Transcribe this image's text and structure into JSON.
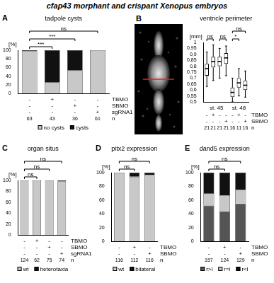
{
  "title": "cfap43 morphant and crispant Xenopus embryos",
  "chart_data": [
    {
      "panel": "A",
      "type": "bar",
      "stacked": true,
      "title": "tadpole cysts",
      "ylabel": "[%]",
      "categories": [
        null,
        null,
        null,
        null
      ],
      "series": [
        {
          "name": "no cysts",
          "color": "#c8c8c8",
          "values": [
            98,
            25,
            53,
            100
          ]
        },
        {
          "name": "cysts",
          "color": "#111111",
          "values": [
            2,
            75,
            47,
            0
          ]
        }
      ],
      "ylim": [
        0,
        100
      ],
      "yticks": [
        0,
        20,
        40,
        60,
        80,
        100
      ],
      "significance": [
        null,
        "***",
        "***",
        "ns"
      ],
      "conditions": [
        {
          "name": "TBMO",
          "values": [
            "-",
            "+",
            "-",
            "-"
          ]
        },
        {
          "name": "SBMO",
          "values": [
            "-",
            "-",
            "+",
            "-"
          ]
        },
        {
          "name": "sgRNA1",
          "values": [
            "-",
            "-",
            "-",
            "+"
          ]
        }
      ],
      "n": [
        63,
        43,
        36,
        61
      ],
      "legend": "bottom"
    },
    {
      "panel": "B",
      "type": "boxplot",
      "title": "ventricle perimeter",
      "ylabel": "[mm]",
      "categories": [
        null,
        null,
        null,
        null,
        null,
        null,
        null
      ],
      "boxes": [
        {
          "stage": "st. 45",
          "min": 0.63,
          "q1": 0.72,
          "median": 0.78,
          "q3": 0.82,
          "max": 0.92
        },
        {
          "stage": "st. 45",
          "min": 0.68,
          "q1": 0.79,
          "median": 0.84,
          "q3": 0.88,
          "max": 0.98
        },
        {
          "stage": "st. 45",
          "min": 0.7,
          "q1": 0.8,
          "median": 0.84,
          "q3": 0.88,
          "max": 0.95
        },
        {
          "stage": "st. 45",
          "min": 0.72,
          "q1": 0.82,
          "median": 0.87,
          "q3": 0.91,
          "max": 0.97
        },
        {
          "stage": "st. 48",
          "min": 0.5,
          "q1": 0.54,
          "median": 0.58,
          "q3": 0.62,
          "max": 0.7
        },
        {
          "stage": "st. 48",
          "min": 0.55,
          "q1": 0.62,
          "median": 0.66,
          "q3": 0.7,
          "max": 0.78
        },
        {
          "stage": "st. 48",
          "min": 0.54,
          "q1": 0.6,
          "median": 0.64,
          "q3": 0.68,
          "max": 0.76
        }
      ],
      "color": "#ffffff",
      "ylim": [
        0.5,
        1
      ],
      "yticks": [
        {
          "value": 0.5,
          "label": "0,5"
        },
        {
          "value": 0.55,
          "label": "0,55"
        },
        {
          "value": 0.6,
          "label": "0,6"
        },
        {
          "value": 0.65,
          "label": "0,65"
        },
        {
          "value": 0.7,
          "label": "0,7"
        },
        {
          "value": 0.75,
          "label": "0,75"
        },
        {
          "value": 0.8,
          "label": "0,8"
        },
        {
          "value": 0.85,
          "label": "0,85"
        },
        {
          "value": 0.9,
          "label": "0,9"
        },
        {
          "value": 0.95,
          "label": "0,95"
        },
        {
          "value": 1,
          "label": "1"
        }
      ],
      "significance": [
        null,
        "ns",
        null,
        "ns",
        null,
        "*",
        "ns"
      ],
      "conditions": [
        {
          "name": "TBMO",
          "values": [
            "-",
            "+",
            "-",
            "-",
            "-",
            "+",
            "-"
          ]
        },
        {
          "name": "SBMO",
          "values": [
            "-",
            "-",
            "-",
            "+",
            "-",
            "-",
            "+"
          ]
        }
      ],
      "n": [
        21,
        21,
        21,
        21,
        16,
        11,
        16
      ]
    },
    {
      "panel": "C",
      "type": "bar",
      "stacked": true,
      "title": "organ situs",
      "ylabel": "[%]",
      "categories": [
        null,
        null,
        null,
        null
      ],
      "series": [
        {
          "name": "wt",
          "color": "#c8c8c8",
          "values": [
            100,
            100,
            100,
            98
          ]
        },
        {
          "name": "heterotaxia",
          "color": "#111111",
          "values": [
            0,
            0,
            0,
            2
          ]
        }
      ],
      "ylim": [
        0,
        100
      ],
      "yticks": [
        0,
        20,
        40,
        60,
        80,
        100
      ],
      "significance": [
        null,
        "ns",
        "ns",
        "ns"
      ],
      "conditions": [
        {
          "name": "TBMO",
          "values": [
            "-",
            "+",
            "-",
            "-"
          ]
        },
        {
          "name": "SBMO",
          "values": [
            "-",
            "-",
            "+",
            "-"
          ]
        },
        {
          "name": "sgRNA1",
          "values": [
            "-",
            "-",
            "-",
            "+"
          ]
        }
      ],
      "n": [
        124,
        62,
        75,
        74
      ],
      "legend": "bottom"
    },
    {
      "panel": "D",
      "type": "bar",
      "stacked": true,
      "title": "pitx2 expression",
      "ylabel": "[%]",
      "categories": [
        null,
        null,
        null
      ],
      "series": [
        {
          "name": "wt",
          "color": "#c8c8c8",
          "values": [
            100,
            94,
            97
          ]
        },
        {
          "name": "bilateral",
          "color": "#111111",
          "values": [
            0,
            6,
            3
          ]
        }
      ],
      "ylim": [
        0,
        100
      ],
      "yticks": [
        0,
        20,
        40,
        60,
        80,
        100
      ],
      "significance": [
        null,
        "ns",
        "ns"
      ],
      "conditions": [
        {
          "name": "TBMO",
          "values": [
            "-",
            "+",
            "-"
          ]
        },
        {
          "name": "SBMO",
          "values": [
            "-",
            "-",
            "+"
          ]
        }
      ],
      "n": [
        116,
        112,
        116
      ],
      "legend": "bottom"
    },
    {
      "panel": "E",
      "type": "bar",
      "stacked": true,
      "title": "dand5 expression",
      "ylabel": "[%]",
      "categories": [
        null,
        null,
        null
      ],
      "series": [
        {
          "name": "r>l",
          "color": "#555555",
          "values": [
            52,
            43,
            55
          ]
        },
        {
          "name": "r=l",
          "color": "#c8c8c8",
          "values": [
            18,
            24,
            20
          ]
        },
        {
          "name": "r<l",
          "color": "#111111",
          "values": [
            30,
            33,
            25
          ]
        }
      ],
      "ylim": [
        0,
        100
      ],
      "yticks": [
        0,
        20,
        40,
        60,
        80,
        100
      ],
      "significance": [
        null,
        "ns",
        "ns"
      ],
      "conditions": [
        {
          "name": "TBMO",
          "values": [
            "-",
            "+",
            "-"
          ]
        },
        {
          "name": "SBMO",
          "values": [
            "-",
            "-",
            "+"
          ]
        }
      ],
      "n": [
        157,
        124,
        129
      ],
      "legend": "bottom"
    }
  ]
}
